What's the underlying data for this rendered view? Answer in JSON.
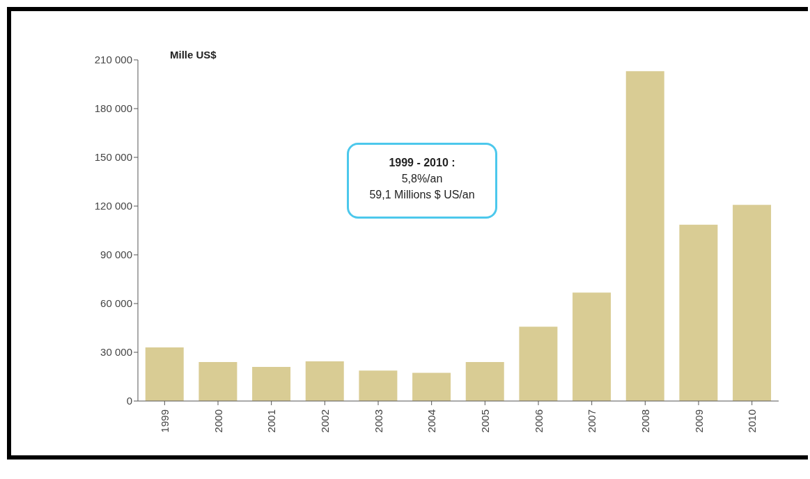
{
  "chart_data": {
    "type": "bar",
    "ylabel": "Mille US$",
    "categories": [
      "1999",
      "2000",
      "2001",
      "2002",
      "2003",
      "2004",
      "2005",
      "2006",
      "2007",
      "2008",
      "2009",
      "2010"
    ],
    "values": [
      33000,
      24000,
      21000,
      24400,
      18700,
      17400,
      24000,
      45700,
      66700,
      203000,
      108500,
      120700
    ],
    "color": "#d9cc94",
    "ylim": [
      0,
      210000
    ],
    "yticks": [
      {
        "value": 0,
        "label": "0"
      },
      {
        "value": 30000,
        "label": "30 000"
      },
      {
        "value": 60000,
        "label": "60 000"
      },
      {
        "value": 90000,
        "label": "90 000"
      },
      {
        "value": 120000,
        "label": "120 000"
      },
      {
        "value": 150000,
        "label": "150 000"
      },
      {
        "value": 180000,
        "label": "180 000"
      },
      {
        "value": 210000,
        "label": "210 000"
      }
    ],
    "grid": false,
    "annotations": [
      "1999 - 2010 :",
      "5,8%/an",
      "59,1 Millions $ US/an"
    ]
  }
}
